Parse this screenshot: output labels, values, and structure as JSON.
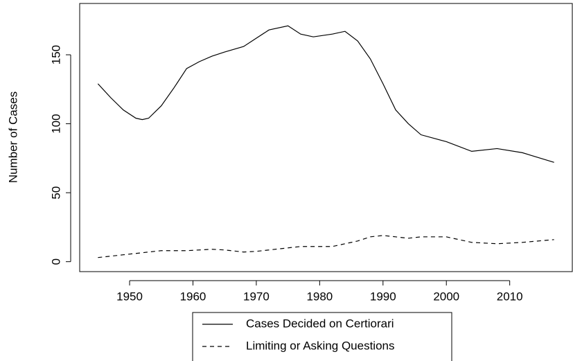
{
  "chart_data": {
    "type": "line",
    "y_label": "Number of Cases",
    "x": [
      1945,
      1947,
      1949,
      1951,
      1952,
      1953,
      1955,
      1957,
      1959,
      1961,
      1963,
      1965,
      1968,
      1970,
      1972,
      1975,
      1977,
      1979,
      1982,
      1984,
      1986,
      1988,
      1990,
      1992,
      1994,
      1996,
      2000,
      2004,
      2008,
      2012,
      2017
    ],
    "series": [
      {
        "name": "Cases Decided on Certiorari",
        "color": "#000000",
        "dash": "solid",
        "values": [
          129,
          119,
          110,
          104,
          103,
          104,
          113,
          126,
          140,
          145,
          149,
          152,
          156,
          162,
          168,
          171,
          165,
          163,
          165,
          167,
          160,
          147,
          129,
          110,
          100,
          92,
          87,
          80,
          82,
          79,
          72
        ]
      },
      {
        "name": "Limiting or Asking Questions",
        "color": "#000000",
        "dash": "dashed",
        "values": [
          3,
          4,
          5,
          6,
          6.5,
          7,
          8,
          8,
          8,
          8.5,
          9,
          8.5,
          7,
          7.5,
          8.5,
          10,
          11,
          11,
          11,
          13,
          15,
          18,
          19,
          18,
          17,
          18,
          18,
          14,
          13,
          14,
          16
        ]
      }
    ],
    "xlim": [
      1942.12,
      2019.88
    ],
    "xticks": [
      1950,
      1960,
      1970,
      1980,
      1990,
      2000,
      2010
    ],
    "ylim": [
      -7.2,
      187.2
    ],
    "yticks": [
      0,
      50,
      100,
      150
    ],
    "legend": "bottom"
  }
}
